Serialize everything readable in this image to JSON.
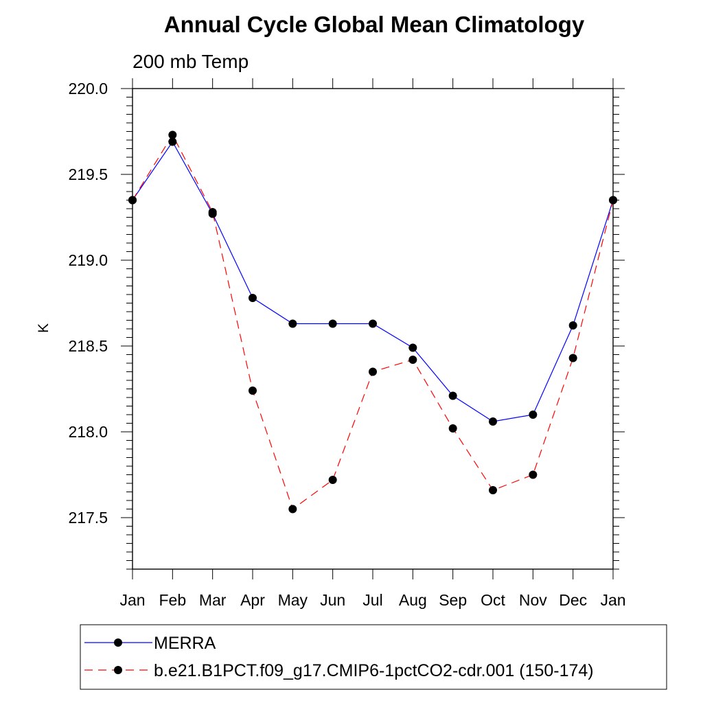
{
  "chart_data": {
    "type": "line",
    "title": "Annual Cycle Global Mean Climatology",
    "subtitle": "200 mb Temp",
    "xlabel": "",
    "ylabel": "K",
    "categories": [
      "Jan",
      "Feb",
      "Mar",
      "Apr",
      "May",
      "Jun",
      "Jul",
      "Aug",
      "Sep",
      "Oct",
      "Nov",
      "Dec",
      "Jan"
    ],
    "ylim": [
      217.2,
      220.0
    ],
    "y_ticks": [
      "217.5",
      "218.0",
      "218.5",
      "219.0",
      "219.5",
      "220.0"
    ],
    "grid": false,
    "legend_position": "bottom",
    "series": [
      {
        "name": "MERRA",
        "color": "#0000ff",
        "line_style": "solid",
        "marker": "filled-circle",
        "values": [
          219.35,
          219.69,
          219.27,
          218.78,
          218.63,
          218.63,
          218.63,
          218.49,
          218.21,
          218.06,
          218.1,
          218.62,
          219.35
        ]
      },
      {
        "name": "b.e21.B1PCT.f09_g17.CMIP6-1pctCO2-cdr.001 (150-174)",
        "color": "#ff0000",
        "line_style": "dashed",
        "marker": "filled-circle",
        "values": [
          219.35,
          219.73,
          219.28,
          218.24,
          217.55,
          217.72,
          218.35,
          218.42,
          218.02,
          217.66,
          217.75,
          218.43,
          219.35
        ]
      }
    ]
  }
}
